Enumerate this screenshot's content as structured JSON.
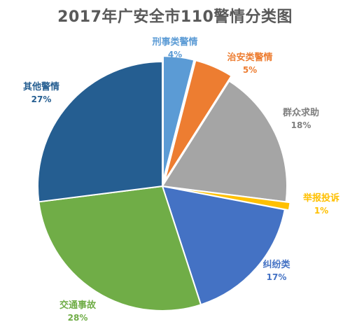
{
  "chart_data": {
    "type": "pie",
    "title": "2017年广安全市110警情分类图",
    "legend": "none",
    "slices": [
      {
        "label": "刑事类警情",
        "value": 4,
        "pct_text": "4%",
        "color": "#5B9BD5"
      },
      {
        "label": "治安类警情",
        "value": 5,
        "pct_text": "5%",
        "color": "#ED7D31"
      },
      {
        "label": "群众求助",
        "value": 18,
        "pct_text": "18%",
        "color": "#A5A5A5"
      },
      {
        "label": "举报投诉",
        "value": 1,
        "pct_text": "1%",
        "color": "#FFC000"
      },
      {
        "label": "纠纷类",
        "value": 17,
        "pct_text": "17%",
        "color": "#4472C4"
      },
      {
        "label": "交通事故",
        "value": 28,
        "pct_text": "28%",
        "color": "#70AD47"
      },
      {
        "label": "其他警情",
        "value": 27,
        "pct_text": "27%",
        "color": "#255E91"
      }
    ]
  }
}
